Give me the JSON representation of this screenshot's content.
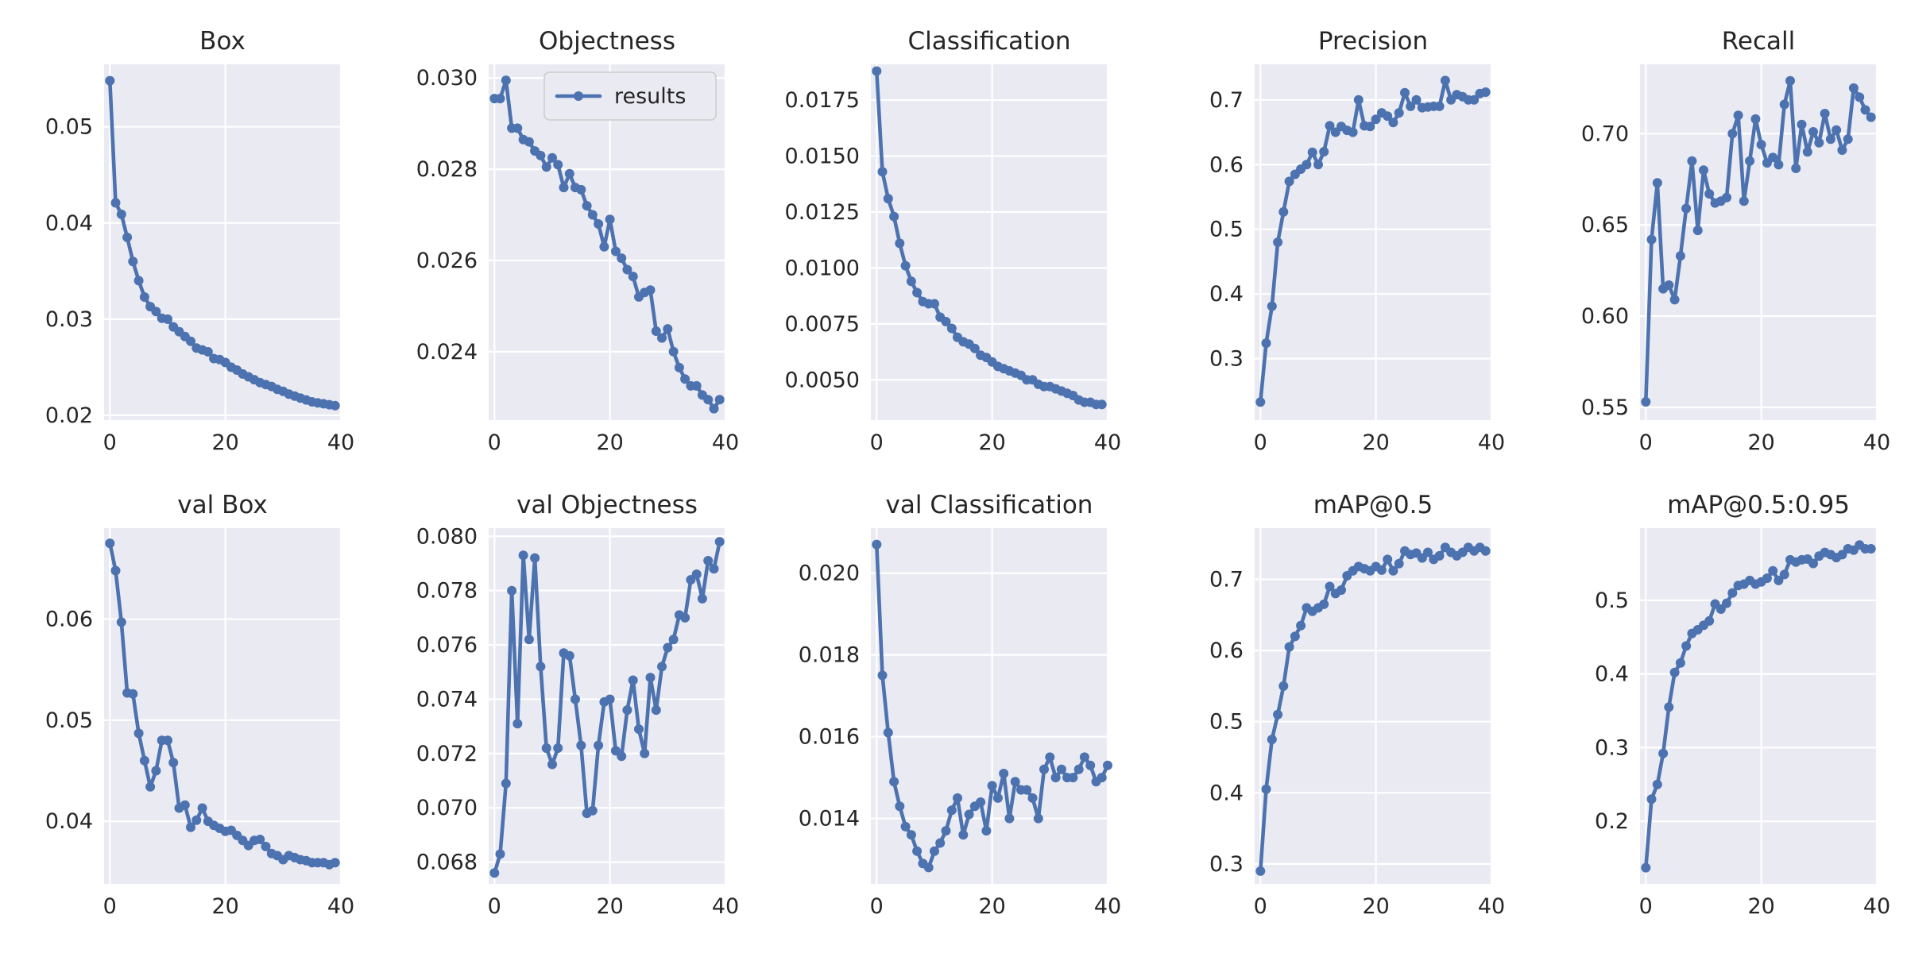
{
  "legend": {
    "label": "results"
  },
  "chart_data": [
    {
      "type": "line",
      "title": "Box",
      "xlim": [
        -1,
        40
      ],
      "ylim": [
        0.0195,
        0.0565
      ],
      "xticks": [
        0,
        20,
        40
      ],
      "yticks": [
        0.02,
        0.03,
        0.04,
        0.05
      ],
      "yformat": 2,
      "series": [
        {
          "values": [
            0.0548,
            0.0421,
            0.0409,
            0.0385,
            0.036,
            0.034,
            0.0323,
            0.0313,
            0.0308,
            0.0301,
            0.03,
            0.0292,
            0.0287,
            0.0282,
            0.0277,
            0.027,
            0.0268,
            0.0266,
            0.0259,
            0.0258,
            0.0255,
            0.025,
            0.0247,
            0.0243,
            0.024,
            0.0237,
            0.0234,
            0.0232,
            0.023,
            0.0227,
            0.0225,
            0.0222,
            0.022,
            0.0218,
            0.0216,
            0.0214,
            0.0213,
            0.0212,
            0.0211,
            0.021
          ]
        }
      ]
    },
    {
      "type": "line",
      "title": "Objectness",
      "xlim": [
        -1,
        40
      ],
      "ylim": [
        0.0225,
        0.0303
      ],
      "xticks": [
        0,
        20,
        40
      ],
      "yticks": [
        0.024,
        0.026,
        0.028,
        0.03
      ],
      "yformat": 3,
      "series": [
        {
          "name": "results",
          "values": [
            0.02955,
            0.02955,
            0.02995,
            0.0289,
            0.0289,
            0.02865,
            0.0286,
            0.0284,
            0.0283,
            0.02805,
            0.02825,
            0.0281,
            0.0276,
            0.0279,
            0.0276,
            0.02755,
            0.0272,
            0.027,
            0.0268,
            0.0263,
            0.0269,
            0.0262,
            0.02605,
            0.0258,
            0.02565,
            0.0252,
            0.0253,
            0.02535,
            0.02445,
            0.0243,
            0.0245,
            0.024,
            0.02365,
            0.0234,
            0.02325,
            0.02325,
            0.02305,
            0.02295,
            0.02275,
            0.02295
          ]
        }
      ]
    },
    {
      "type": "line",
      "title": "Classification",
      "xlim": [
        -1,
        40
      ],
      "ylim": [
        0.0032,
        0.0191
      ],
      "xticks": [
        0,
        20,
        40
      ],
      "yticks": [
        0.005,
        0.0075,
        0.01,
        0.0125,
        0.015,
        0.0175
      ],
      "yformat": 4,
      "series": [
        {
          "values": [
            0.0188,
            0.0143,
            0.0131,
            0.0123,
            0.0111,
            0.0101,
            0.0094,
            0.0089,
            0.0085,
            0.0084,
            0.0084,
            0.0078,
            0.0076,
            0.0073,
            0.0069,
            0.0067,
            0.0066,
            0.0064,
            0.0061,
            0.006,
            0.0058,
            0.0056,
            0.0055,
            0.0054,
            0.0053,
            0.0052,
            0.005,
            0.005,
            0.0048,
            0.0047,
            0.0047,
            0.0046,
            0.0045,
            0.0044,
            0.0043,
            0.0041,
            0.004,
            0.004,
            0.0039,
            0.0039
          ]
        }
      ]
    },
    {
      "type": "line",
      "title": "Precision",
      "xlim": [
        -1,
        40
      ],
      "ylim": [
        0.205,
        0.755
      ],
      "xticks": [
        0,
        20,
        40
      ],
      "yticks": [
        0.3,
        0.4,
        0.5,
        0.6,
        0.7
      ],
      "yformat": 1,
      "series": [
        {
          "values": [
            0.233,
            0.324,
            0.381,
            0.48,
            0.527,
            0.574,
            0.585,
            0.593,
            0.6,
            0.619,
            0.6,
            0.62,
            0.66,
            0.65,
            0.659,
            0.653,
            0.65,
            0.7,
            0.66,
            0.659,
            0.67,
            0.68,
            0.675,
            0.665,
            0.68,
            0.711,
            0.69,
            0.7,
            0.688,
            0.689,
            0.69,
            0.69,
            0.73,
            0.7,
            0.708,
            0.705,
            0.7,
            0.7,
            0.71,
            0.712
          ]
        }
      ]
    },
    {
      "type": "line",
      "title": "Recall",
      "xlim": [
        -1,
        40
      ],
      "ylim": [
        0.543,
        0.738
      ],
      "xticks": [
        0,
        20,
        40
      ],
      "yticks": [
        0.55,
        0.6,
        0.65,
        0.7
      ],
      "yformat": 2,
      "series": [
        {
          "values": [
            0.553,
            0.642,
            0.673,
            0.615,
            0.617,
            0.609,
            0.633,
            0.659,
            0.685,
            0.647,
            0.68,
            0.667,
            0.662,
            0.663,
            0.665,
            0.7,
            0.71,
            0.663,
            0.685,
            0.708,
            0.694,
            0.684,
            0.687,
            0.683,
            0.716,
            0.729,
            0.681,
            0.705,
            0.69,
            0.701,
            0.695,
            0.711,
            0.697,
            0.702,
            0.691,
            0.697,
            0.725,
            0.72,
            0.713,
            0.709
          ]
        }
      ]
    },
    {
      "type": "line",
      "title": "val Box",
      "xlim": [
        -1,
        40
      ],
      "ylim": [
        0.0338,
        0.069
      ],
      "xticks": [
        0,
        20,
        40
      ],
      "yticks": [
        0.04,
        0.05,
        0.06
      ],
      "yformat": 2,
      "series": [
        {
          "values": [
            0.0675,
            0.0648,
            0.0597,
            0.0527,
            0.0526,
            0.0487,
            0.046,
            0.0434,
            0.045,
            0.048,
            0.048,
            0.0458,
            0.0413,
            0.0416,
            0.0394,
            0.0401,
            0.0413,
            0.04,
            0.0396,
            0.0393,
            0.039,
            0.0391,
            0.0386,
            0.0381,
            0.0376,
            0.0381,
            0.0382,
            0.0375,
            0.0368,
            0.0366,
            0.0362,
            0.0366,
            0.0364,
            0.0362,
            0.0361,
            0.0359,
            0.0359,
            0.0359,
            0.0357,
            0.0359
          ]
        }
      ]
    },
    {
      "type": "line",
      "title": "val Objectness",
      "xlim": [
        -1,
        40
      ],
      "ylim": [
        0.0672,
        0.0803
      ],
      "xticks": [
        0,
        20,
        40
      ],
      "yticks": [
        0.068,
        0.07,
        0.072,
        0.074,
        0.076,
        0.078,
        0.08
      ],
      "yformat": 3,
      "series": [
        {
          "values": [
            0.0676,
            0.0683,
            0.0709,
            0.078,
            0.0731,
            0.0793,
            0.0762,
            0.0792,
            0.0752,
            0.0722,
            0.0716,
            0.0722,
            0.0757,
            0.0756,
            0.074,
            0.0723,
            0.0698,
            0.0699,
            0.0723,
            0.0739,
            0.074,
            0.0721,
            0.0719,
            0.0736,
            0.0747,
            0.0729,
            0.072,
            0.0748,
            0.0736,
            0.0752,
            0.0759,
            0.0762,
            0.0771,
            0.077,
            0.0784,
            0.0786,
            0.0777,
            0.0791,
            0.0788,
            0.0798
          ]
        }
      ]
    },
    {
      "type": "line",
      "title": "val Classification",
      "xlim": [
        -1,
        40
      ],
      "ylim": [
        0.0124,
        0.0211
      ],
      "xticks": [
        0,
        20,
        40
      ],
      "yticks": [
        0.014,
        0.016,
        0.018,
        0.02
      ],
      "yformat": 3,
      "series": [
        {
          "values": [
            0.0207,
            0.0175,
            0.0161,
            0.0149,
            0.0143,
            0.0138,
            0.0136,
            0.0132,
            0.0129,
            0.0128,
            0.0132,
            0.0134,
            0.0137,
            0.0142,
            0.0145,
            0.0136,
            0.0141,
            0.0143,
            0.0144,
            0.0137,
            0.0148,
            0.0145,
            0.0151,
            0.014,
            0.0149,
            0.0147,
            0.0147,
            0.0145,
            0.014,
            0.0152,
            0.0155,
            0.015,
            0.0152,
            0.015,
            0.015,
            0.0152,
            0.0155,
            0.0153,
            0.0149,
            0.015,
            0.0153
          ]
        }
      ]
    },
    {
      "type": "line",
      "title": "mAP@0.5",
      "xlim": [
        -1,
        40
      ],
      "ylim": [
        0.272,
        0.772
      ],
      "xticks": [
        0,
        20,
        40
      ],
      "yticks": [
        0.3,
        0.4,
        0.5,
        0.6,
        0.7
      ],
      "yformat": 1,
      "series": [
        {
          "values": [
            0.29,
            0.405,
            0.475,
            0.51,
            0.55,
            0.605,
            0.62,
            0.635,
            0.66,
            0.655,
            0.66,
            0.665,
            0.69,
            0.68,
            0.685,
            0.705,
            0.712,
            0.718,
            0.715,
            0.712,
            0.718,
            0.713,
            0.728,
            0.712,
            0.722,
            0.74,
            0.735,
            0.737,
            0.73,
            0.738,
            0.728,
            0.733,
            0.745,
            0.738,
            0.733,
            0.738,
            0.745,
            0.74,
            0.745,
            0.74
          ]
        }
      ]
    },
    {
      "type": "line",
      "title": "mAP@0.5:0.95",
      "xlim": [
        -1,
        40
      ],
      "ylim": [
        0.115,
        0.598
      ],
      "xticks": [
        0,
        20,
        40
      ],
      "yticks": [
        0.2,
        0.3,
        0.4,
        0.5
      ],
      "yformat": 1,
      "series": [
        {
          "values": [
            0.137,
            0.23,
            0.25,
            0.292,
            0.355,
            0.402,
            0.415,
            0.438,
            0.455,
            0.46,
            0.466,
            0.472,
            0.495,
            0.488,
            0.496,
            0.51,
            0.52,
            0.522,
            0.527,
            0.522,
            0.525,
            0.53,
            0.54,
            0.527,
            0.535,
            0.555,
            0.552,
            0.555,
            0.556,
            0.55,
            0.56,
            0.565,
            0.562,
            0.558,
            0.562,
            0.57,
            0.568,
            0.575,
            0.57,
            0.57
          ]
        }
      ]
    }
  ]
}
